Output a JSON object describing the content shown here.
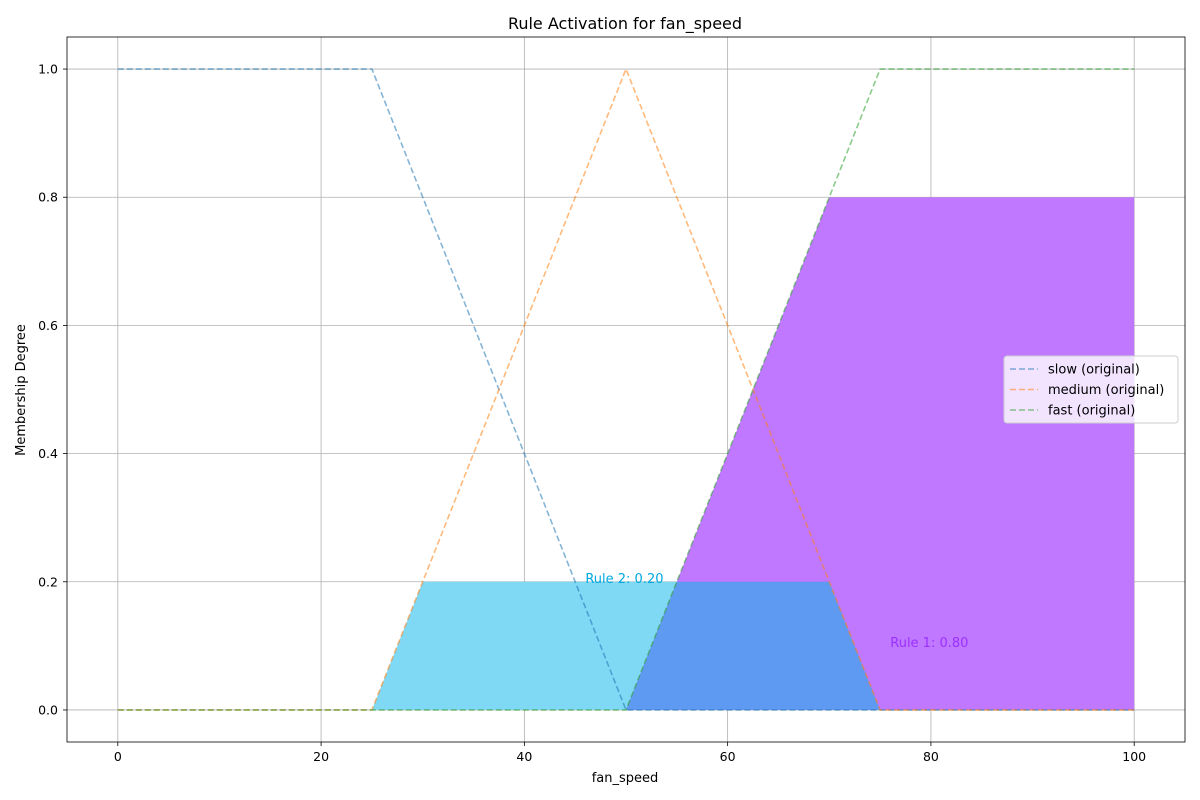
{
  "chart_data": {
    "type": "area",
    "title": "Rule Activation for fan_speed",
    "xlabel": "fan_speed",
    "ylabel": "Membership Degree",
    "xlim": [
      -5,
      105
    ],
    "ylim": [
      -0.05,
      1.05
    ],
    "xticks": [
      0,
      20,
      40,
      60,
      80,
      100
    ],
    "yticks": [
      0.0,
      0.2,
      0.4,
      0.6,
      0.8,
      1.0
    ],
    "xtick_labels": [
      "0",
      "20",
      "40",
      "60",
      "80",
      "100"
    ],
    "ytick_labels": [
      "0.0",
      "0.2",
      "0.4",
      "0.6",
      "0.8",
      "1.0"
    ],
    "grid": true,
    "legend_position": "center-right",
    "series": [
      {
        "name": "slow (original)",
        "style": "dashed",
        "color": "#1f77b4",
        "x": [
          0,
          25,
          50,
          100
        ],
        "y": [
          1,
          1,
          0,
          0
        ]
      },
      {
        "name": "medium (original)",
        "style": "dashed",
        "color": "#ff7f0e",
        "x": [
          0,
          25,
          50,
          75,
          100
        ],
        "y": [
          0,
          0,
          1,
          0,
          0
        ]
      },
      {
        "name": "fast (original)",
        "style": "dashed",
        "color": "#2ca02c",
        "x": [
          0,
          50,
          75,
          100
        ],
        "y": [
          0,
          0,
          1,
          1
        ]
      }
    ],
    "activations": [
      {
        "label": "Rule 2: 0.20",
        "color": "#00a8e0",
        "fill": "#7fd8f4",
        "x": [
          25,
          30,
          70,
          75
        ],
        "y": [
          0,
          0.2,
          0.2,
          0
        ],
        "label_at": [
          46,
          0.2
        ]
      },
      {
        "label": "Rule 1: 0.80",
        "color": "#9b30ff",
        "fill": "#bf78ff",
        "x": [
          50,
          70,
          100,
          100
        ],
        "y": [
          0,
          0.8,
          0.8,
          0
        ],
        "label_at": [
          76,
          0.1
        ]
      }
    ],
    "overlap_fill": "#5f9af2"
  }
}
